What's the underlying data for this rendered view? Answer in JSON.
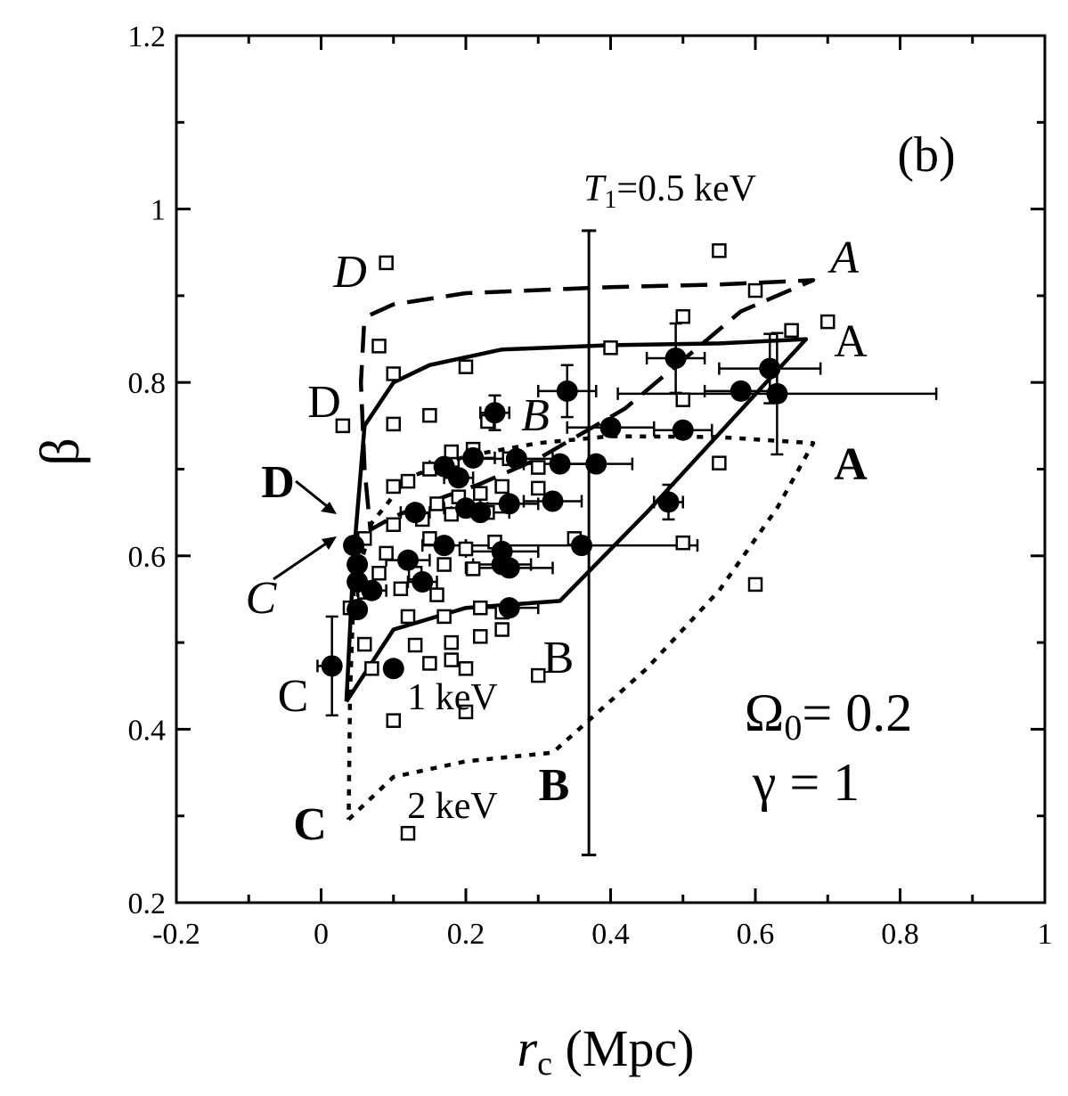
{
  "chart_data": {
    "type": "scatter",
    "panel_label": "(b)",
    "xlabel": {
      "italic": "r",
      "sub": "c",
      "rest": " (Mpc)"
    },
    "ylabel": "β",
    "xlim": [
      -0.2,
      1.0
    ],
    "ylim": [
      0.2,
      1.2
    ],
    "x_ticks": [
      -0.2,
      0,
      0.2,
      0.4,
      0.6,
      0.8,
      1
    ],
    "x_tick_labels": [
      "-0.2",
      "0",
      "0.2",
      "0.4",
      "0.6",
      "0.8",
      "1"
    ],
    "y_ticks": [
      0.2,
      0.4,
      0.6,
      0.8,
      1.0,
      1.2
    ],
    "y_tick_labels": [
      "0.2",
      "0.4",
      "0.6",
      "0.8",
      "1",
      "1.2"
    ],
    "params": [
      {
        "symbol": "Ω",
        "sub": "0",
        "rest": "= 0.2"
      },
      {
        "symbol": "γ",
        "sub": "",
        "rest": " = 1"
      }
    ],
    "series": [
      {
        "marker": "open-square",
        "points": [
          [
            0.09,
            0.938
          ],
          [
            0.55,
            0.952
          ],
          [
            0.6,
            0.906
          ],
          [
            0.7,
            0.87
          ],
          [
            0.65,
            0.86
          ],
          [
            0.5,
            0.876
          ],
          [
            0.08,
            0.842
          ],
          [
            0.4,
            0.84
          ],
          [
            0.1,
            0.81
          ],
          [
            0.2,
            0.818
          ],
          [
            0.03,
            0.75
          ],
          [
            0.1,
            0.752
          ],
          [
            0.15,
            0.762
          ],
          [
            0.21,
            0.723
          ],
          [
            0.23,
            0.755
          ],
          [
            0.18,
            0.72
          ],
          [
            0.26,
            0.712
          ],
          [
            0.3,
            0.702
          ],
          [
            0.55,
            0.707
          ],
          [
            0.5,
            0.78
          ],
          [
            0.1,
            0.68
          ],
          [
            0.12,
            0.686
          ],
          [
            0.15,
            0.7
          ],
          [
            0.19,
            0.668
          ],
          [
            0.22,
            0.672
          ],
          [
            0.25,
            0.68
          ],
          [
            0.3,
            0.678
          ],
          [
            0.16,
            0.66
          ],
          [
            0.1,
            0.636
          ],
          [
            0.14,
            0.642
          ],
          [
            0.18,
            0.648
          ],
          [
            0.23,
            0.65
          ],
          [
            0.06,
            0.62
          ],
          [
            0.09,
            0.603
          ],
          [
            0.15,
            0.62
          ],
          [
            0.2,
            0.608
          ],
          [
            0.24,
            0.616
          ],
          [
            0.35,
            0.62
          ],
          [
            0.5,
            0.615
          ],
          [
            0.08,
            0.58
          ],
          [
            0.13,
            0.58
          ],
          [
            0.17,
            0.59
          ],
          [
            0.21,
            0.585
          ],
          [
            0.06,
            0.558
          ],
          [
            0.11,
            0.562
          ],
          [
            0.16,
            0.555
          ],
          [
            0.22,
            0.54
          ],
          [
            0.12,
            0.53
          ],
          [
            0.17,
            0.53
          ],
          [
            0.25,
            0.535
          ],
          [
            0.06,
            0.498
          ],
          [
            0.13,
            0.497
          ],
          [
            0.18,
            0.5
          ],
          [
            0.22,
            0.507
          ],
          [
            0.25,
            0.515
          ],
          [
            0.15,
            0.476
          ],
          [
            0.18,
            0.48
          ],
          [
            0.2,
            0.47
          ],
          [
            0.3,
            0.462
          ],
          [
            0.1,
            0.41
          ],
          [
            0.2,
            0.42
          ],
          [
            0.12,
            0.28
          ],
          [
            0.6,
            0.567
          ],
          [
            0.04,
            0.54
          ],
          [
            0.07,
            0.47
          ]
        ]
      },
      {
        "marker": "filled-circle",
        "points": [
          [
            0.015,
            0.473,
            0.02,
            0,
            0.057,
            0.057
          ],
          [
            0.045,
            0.612,
            0.01,
            0.01,
            0,
            0
          ],
          [
            0.05,
            0.59,
            0.01,
            0.01,
            0,
            0
          ],
          [
            0.05,
            0.57,
            0.01,
            0.01,
            0,
            0
          ],
          [
            0.05,
            0.538,
            0.01,
            0.01,
            0,
            0
          ],
          [
            0.07,
            0.56,
            0.02,
            0.02,
            0,
            0
          ],
          [
            0.1,
            0.47,
            0,
            0,
            0,
            0
          ],
          [
            0.12,
            0.595,
            0.03,
            0.03,
            0,
            0
          ],
          [
            0.13,
            0.65,
            0.02,
            0.02,
            0,
            0
          ],
          [
            0.14,
            0.57,
            0.02,
            0.02,
            0,
            0
          ],
          [
            0.17,
            0.612,
            0.03,
            0.03,
            0,
            0
          ],
          [
            0.17,
            0.703,
            0.02,
            0.02,
            0,
            0
          ],
          [
            0.19,
            0.69,
            0.02,
            0.02,
            0,
            0
          ],
          [
            0.2,
            0.655,
            0.03,
            0.03,
            0,
            0
          ],
          [
            0.21,
            0.713,
            0.03,
            0.03,
            0,
            0
          ],
          [
            0.22,
            0.65,
            0.04,
            0.04,
            0,
            0
          ],
          [
            0.24,
            0.765,
            0.02,
            0.02,
            0.02,
            0.02
          ],
          [
            0.25,
            0.605,
            0.05,
            0.05,
            0,
            0
          ],
          [
            0.25,
            0.59,
            0.04,
            0.04,
            0,
            0
          ],
          [
            0.26,
            0.54,
            0.04,
            0.04,
            0,
            0
          ],
          [
            0.26,
            0.586,
            0.06,
            0.06,
            0,
            0
          ],
          [
            0.26,
            0.66,
            0.04,
            0.04,
            0,
            0
          ],
          [
            0.27,
            0.712,
            0.05,
            0.05,
            0,
            0
          ],
          [
            0.32,
            0.663,
            0.04,
            0.04,
            0,
            0
          ],
          [
            0.33,
            0.706,
            0.05,
            0.05,
            0,
            0
          ],
          [
            0.34,
            0.79,
            0.04,
            0.04,
            0.03,
            0.03
          ],
          [
            0.36,
            0.612,
            0.16,
            0.16,
            0,
            0
          ],
          [
            0.38,
            0.706,
            0.05,
            0.05,
            0,
            0
          ],
          [
            0.4,
            0.748,
            0.06,
            0.06,
            0,
            0
          ],
          [
            0.48,
            0.662,
            0.02,
            0.02,
            0.02,
            0.02
          ],
          [
            0.49,
            0.828,
            0.04,
            0.04,
            0.04,
            0.04
          ],
          [
            0.5,
            0.745,
            0.04,
            0.04,
            0,
            0
          ],
          [
            0.58,
            0.79,
            0.05,
            0.05,
            0,
            0
          ],
          [
            0.62,
            0.816,
            0.07,
            0.07,
            0.04,
            0.04
          ],
          [
            0.63,
            0.787,
            0.22,
            0.22,
            0.07,
            0.07
          ]
        ]
      }
    ],
    "error_bar": {
      "x": 0.37,
      "y_min": 0.255,
      "y_max": 0.975,
      "cap_half_width": 0.01
    },
    "curves": [
      {
        "style": "dashed",
        "label_start": "D",
        "label_end": "A",
        "label_italic": true,
        "points": [
          [
            0.068,
            0.878
          ],
          [
            0.1,
            0.89
          ],
          [
            0.2,
            0.903
          ],
          [
            0.4,
            0.91
          ],
          [
            0.55,
            0.913
          ],
          [
            0.68,
            0.918
          ],
          [
            0.58,
            0.882
          ],
          [
            0.52,
            0.84
          ],
          [
            0.42,
            0.77
          ],
          [
            0.3,
            0.712
          ],
          [
            0.22,
            0.683
          ],
          [
            0.15,
            0.662
          ],
          [
            0.1,
            0.645
          ],
          [
            0.068,
            0.63
          ],
          [
            0.06,
            0.7
          ],
          [
            0.055,
            0.8
          ],
          [
            0.06,
            0.878
          ]
        ]
      },
      {
        "style": "solid",
        "label_start": "D",
        "label_end": "A",
        "label_italic": false,
        "points": [
          [
            0.035,
            0.432
          ],
          [
            0.1,
            0.515
          ],
          [
            0.2,
            0.54
          ],
          [
            0.33,
            0.548
          ],
          [
            0.45,
            0.65
          ],
          [
            0.67,
            0.85
          ],
          [
            0.55,
            0.845
          ],
          [
            0.4,
            0.843
          ],
          [
            0.25,
            0.838
          ],
          [
            0.15,
            0.82
          ],
          [
            0.1,
            0.8
          ],
          [
            0.08,
            0.775
          ],
          [
            0.06,
            0.75
          ],
          [
            0.045,
            0.6
          ],
          [
            0.035,
            0.432
          ]
        ]
      },
      {
        "style": "dotted",
        "label_start": "D",
        "label_end": "A",
        "label_italic": false,
        "points": [
          [
            0.038,
            0.296
          ],
          [
            0.1,
            0.345
          ],
          [
            0.2,
            0.363
          ],
          [
            0.32,
            0.373
          ],
          [
            0.45,
            0.47
          ],
          [
            0.55,
            0.56
          ],
          [
            0.63,
            0.655
          ],
          [
            0.68,
            0.73
          ],
          [
            0.55,
            0.737
          ],
          [
            0.4,
            0.738
          ],
          [
            0.3,
            0.73
          ],
          [
            0.2,
            0.715
          ],
          [
            0.12,
            0.69
          ],
          [
            0.07,
            0.638
          ],
          [
            0.045,
            0.56
          ],
          [
            0.04,
            0.44
          ],
          [
            0.038,
            0.296
          ]
        ]
      }
    ],
    "annotations": [
      {
        "text": "D",
        "x": -0.04,
        "y": 0.78,
        "style": "normal"
      },
      {
        "text": "D",
        "x": -0.07,
        "y": 0.7,
        "style": "bold"
      },
      {
        "text": "C",
        "x": -0.08,
        "y": 0.42,
        "style": "italic"
      },
      {
        "text": "C",
        "x": -0.03,
        "y": 0.44,
        "style": "normal"
      },
      {
        "text": "C",
        "x": -0.08,
        "y": 0.29,
        "style": "bold"
      },
      {
        "text": "B",
        "x": 0.265,
        "y": 0.74,
        "style": "italic"
      },
      {
        "text": "B",
        "x": 0.3,
        "y": 0.48,
        "style": "normal"
      },
      {
        "text": "B",
        "x": 0.305,
        "y": 0.3,
        "style": "bold"
      },
      {
        "text": "A",
        "x": 0.71,
        "y": 0.83,
        "style": "normal"
      },
      {
        "text": "A",
        "x": 0.71,
        "y": 0.71,
        "style": "bold"
      }
    ],
    "temperature_labels": [
      {
        "italic": "T",
        "sub": "1",
        "rest": "=0.5 keV",
        "x": 0.34,
        "y": 1.02
      },
      {
        "italic": "",
        "sub": "",
        "rest": "1 keV",
        "x": 0.1,
        "y": 0.43
      },
      {
        "italic": "",
        "sub": "",
        "rest": "2 keV",
        "x": 0.1,
        "y": 0.3
      }
    ]
  }
}
